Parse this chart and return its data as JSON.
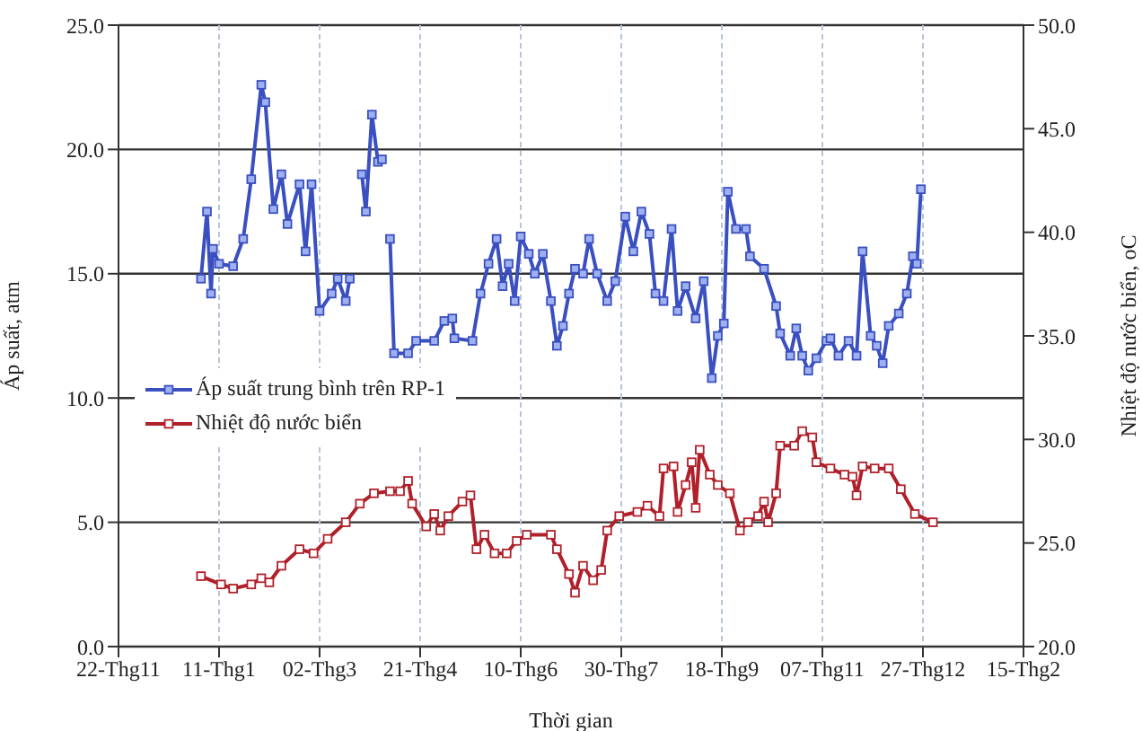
{
  "chart_data": {
    "type": "line",
    "xlabel": "Thời gian",
    "ylabel": "Áp suất, atm",
    "y2label": "Nhiệt độ nước biển, oC",
    "xlim": [
      "2009-11-22",
      "2011-02-15"
    ],
    "xticks": [
      {
        "value": "2009-11-22",
        "label": "22-Thg11"
      },
      {
        "value": "2010-01-11",
        "label": "11-Thg1"
      },
      {
        "value": "2010-03-02",
        "label": "02-Thg3"
      },
      {
        "value": "2010-04-21",
        "label": "21-Thg4"
      },
      {
        "value": "2010-06-10",
        "label": "10-Thg6"
      },
      {
        "value": "2010-07-30",
        "label": "30-Thg7"
      },
      {
        "value": "2010-09-18",
        "label": "18-Thg9"
      },
      {
        "value": "2010-11-07",
        "label": "07-Thg11"
      },
      {
        "value": "2010-12-27",
        "label": "27-Thg12"
      },
      {
        "value": "2011-02-15",
        "label": "15-Thg2"
      }
    ],
    "ylim": [
      0,
      25
    ],
    "yticks": [
      {
        "value": 0,
        "label": "0.0"
      },
      {
        "value": 5,
        "label": "5.0"
      },
      {
        "value": 10,
        "label": "10.0"
      },
      {
        "value": 15,
        "label": "15.0"
      },
      {
        "value": 20,
        "label": "20.0"
      },
      {
        "value": 25,
        "label": "25.0"
      }
    ],
    "y2lim": [
      20,
      50
    ],
    "y2ticks": [
      {
        "value": 20,
        "label": "20.0"
      },
      {
        "value": 25,
        "label": "25.0"
      },
      {
        "value": 30,
        "label": "30.0"
      },
      {
        "value": 35,
        "label": "35.0"
      },
      {
        "value": 40,
        "label": "40.0"
      },
      {
        "value": 45,
        "label": "45.0"
      },
      {
        "value": 50,
        "label": "50.0"
      }
    ],
    "grid": true,
    "legend": "left",
    "marker": "square",
    "line_style": "solid",
    "series": [
      {
        "name": "Áp suất trung bình trên RP-1",
        "color": "#3a4fc0",
        "x": [
          "2010-01-02",
          "2010-01-05",
          "2010-01-07",
          "2010-01-08",
          "2010-01-11",
          "2010-01-18",
          "2010-01-23",
          "2010-01-27",
          "2010-02-01",
          "2010-02-03",
          "2010-02-07",
          "2010-02-11",
          "2010-02-14",
          "2010-02-20",
          "2010-02-23",
          "2010-02-26",
          "2010-03-02",
          "2010-03-08",
          "2010-03-11",
          "2010-03-15",
          "2010-03-17",
          "2010-03-20",
          "2010-03-23",
          "2010-03-25",
          "2010-03-28",
          "2010-03-31",
          "2010-04-02",
          "2010-04-04",
          "2010-04-06",
          "2010-04-08",
          "2010-04-15",
          "2010-04-19",
          "2010-04-28",
          "2010-05-03",
          "2010-05-07",
          "2010-05-08",
          "2010-05-17",
          "2010-05-21",
          "2010-05-25",
          "2010-05-29",
          "2010-06-01",
          "2010-06-04",
          "2010-06-07",
          "2010-06-10",
          "2010-06-14",
          "2010-06-17",
          "2010-06-21",
          "2010-06-25",
          "2010-06-28",
          "2010-07-01",
          "2010-07-04",
          "2010-07-07",
          "2010-07-11",
          "2010-07-14",
          "2010-07-18",
          "2010-07-23",
          "2010-07-27",
          "2010-08-01",
          "2010-08-05",
          "2010-08-09",
          "2010-08-13",
          "2010-08-16",
          "2010-08-20",
          "2010-08-24",
          "2010-08-27",
          "2010-08-31",
          "2010-09-05",
          "2010-09-09",
          "2010-09-13",
          "2010-09-16",
          "2010-09-19",
          "2010-09-21",
          "2010-09-25",
          "2010-09-30",
          "2010-10-02",
          "2010-10-09",
          "2010-10-15",
          "2010-10-17",
          "2010-10-22",
          "2010-10-25",
          "2010-10-28",
          "2010-10-31",
          "2010-11-04",
          "2010-11-09",
          "2010-11-11",
          "2010-11-15",
          "2010-11-20",
          "2010-11-24",
          "2010-11-27",
          "2010-12-01",
          "2010-12-04",
          "2010-12-07",
          "2010-12-10",
          "2010-12-15",
          "2010-12-19",
          "2010-12-22",
          "2010-12-24",
          "2010-12-26"
        ],
        "values": [
          14.8,
          17.5,
          14.2,
          16.0,
          15.4,
          15.3,
          16.4,
          18.8,
          22.6,
          21.9,
          17.6,
          19.0,
          17.0,
          18.6,
          15.9,
          18.6,
          13.5,
          14.2,
          14.8,
          13.9,
          14.8,
          null,
          19.0,
          17.5,
          21.4,
          19.5,
          19.6,
          null,
          16.4,
          11.8,
          11.8,
          12.3,
          12.3,
          13.1,
          13.2,
          12.4,
          12.3,
          14.2,
          15.4,
          16.4,
          14.5,
          15.4,
          13.9,
          16.5,
          15.8,
          15.0,
          15.8,
          13.9,
          12.1,
          12.9,
          14.2,
          15.2,
          15.0,
          16.4,
          15.0,
          13.9,
          14.7,
          17.3,
          15.9,
          17.5,
          16.6,
          14.2,
          13.9,
          16.8,
          13.5,
          14.5,
          13.2,
          14.7,
          10.8,
          12.5,
          13.0,
          18.3,
          16.8,
          16.8,
          15.7,
          15.2,
          13.7,
          12.6,
          11.7,
          12.8,
          11.7,
          11.1,
          11.6,
          12.3,
          12.4,
          11.7,
          12.3,
          11.7,
          15.9,
          12.5,
          12.1,
          11.4,
          12.9,
          13.4,
          14.2,
          15.7,
          15.4,
          18.4
        ]
      },
      {
        "name": "Nhiệt độ nước biển",
        "color": "#b0202a",
        "axis": "y2",
        "x": [
          "2010-01-02",
          "2010-01-12",
          "2010-01-18",
          "2010-01-27",
          "2010-02-01",
          "2010-02-05",
          "2010-02-11",
          "2010-02-20",
          "2010-02-27",
          "2010-03-06",
          "2010-03-15",
          "2010-03-22",
          "2010-03-29",
          "2010-04-06",
          "2010-04-11",
          "2010-04-15",
          "2010-04-17",
          "2010-04-24",
          "2010-04-28",
          "2010-05-01",
          "2010-05-05",
          "2010-05-12",
          "2010-05-16",
          "2010-05-19",
          "2010-05-23",
          "2010-05-28",
          "2010-06-03",
          "2010-06-08",
          "2010-06-13",
          "2010-06-25",
          "2010-06-28",
          "2010-07-04",
          "2010-07-07",
          "2010-07-11",
          "2010-07-16",
          "2010-07-20",
          "2010-07-23",
          "2010-07-29",
          "2010-08-07",
          "2010-08-12",
          "2010-08-18",
          "2010-08-20",
          "2010-08-25",
          "2010-08-27",
          "2010-08-31",
          "2010-09-03",
          "2010-09-05",
          "2010-09-07",
          "2010-09-12",
          "2010-09-16",
          "2010-09-22",
          "2010-09-27",
          "2010-10-01",
          "2010-10-06",
          "2010-10-09",
          "2010-10-11",
          "2010-10-15",
          "2010-10-17",
          "2010-10-24",
          "2010-10-28",
          "2010-11-02",
          "2010-11-04",
          "2010-11-11",
          "2010-11-18",
          "2010-11-22",
          "2010-11-24",
          "2010-11-27",
          "2010-12-03",
          "2010-12-10",
          "2010-12-16",
          "2010-12-23",
          "2011-01-01"
        ],
        "values": [
          23.4,
          23.0,
          22.8,
          23.0,
          23.3,
          23.1,
          23.9,
          24.7,
          24.5,
          25.2,
          26.0,
          26.9,
          27.4,
          27.5,
          27.5,
          28.0,
          26.9,
          25.8,
          26.4,
          25.6,
          26.3,
          27.0,
          27.3,
          24.7,
          25.4,
          24.5,
          24.5,
          25.1,
          25.4,
          25.4,
          24.7,
          23.5,
          22.6,
          23.9,
          23.2,
          23.7,
          25.6,
          26.3,
          26.5,
          26.8,
          26.3,
          28.6,
          28.7,
          26.5,
          27.8,
          28.9,
          26.7,
          29.5,
          28.3,
          27.8,
          27.4,
          25.6,
          26.0,
          26.3,
          27.0,
          26.0,
          27.4,
          29.7,
          29.7,
          30.4,
          30.1,
          28.9,
          28.6,
          28.3,
          28.2,
          27.3,
          28.7,
          28.6,
          28.6,
          27.6,
          26.4,
          26.0
        ]
      }
    ]
  }
}
